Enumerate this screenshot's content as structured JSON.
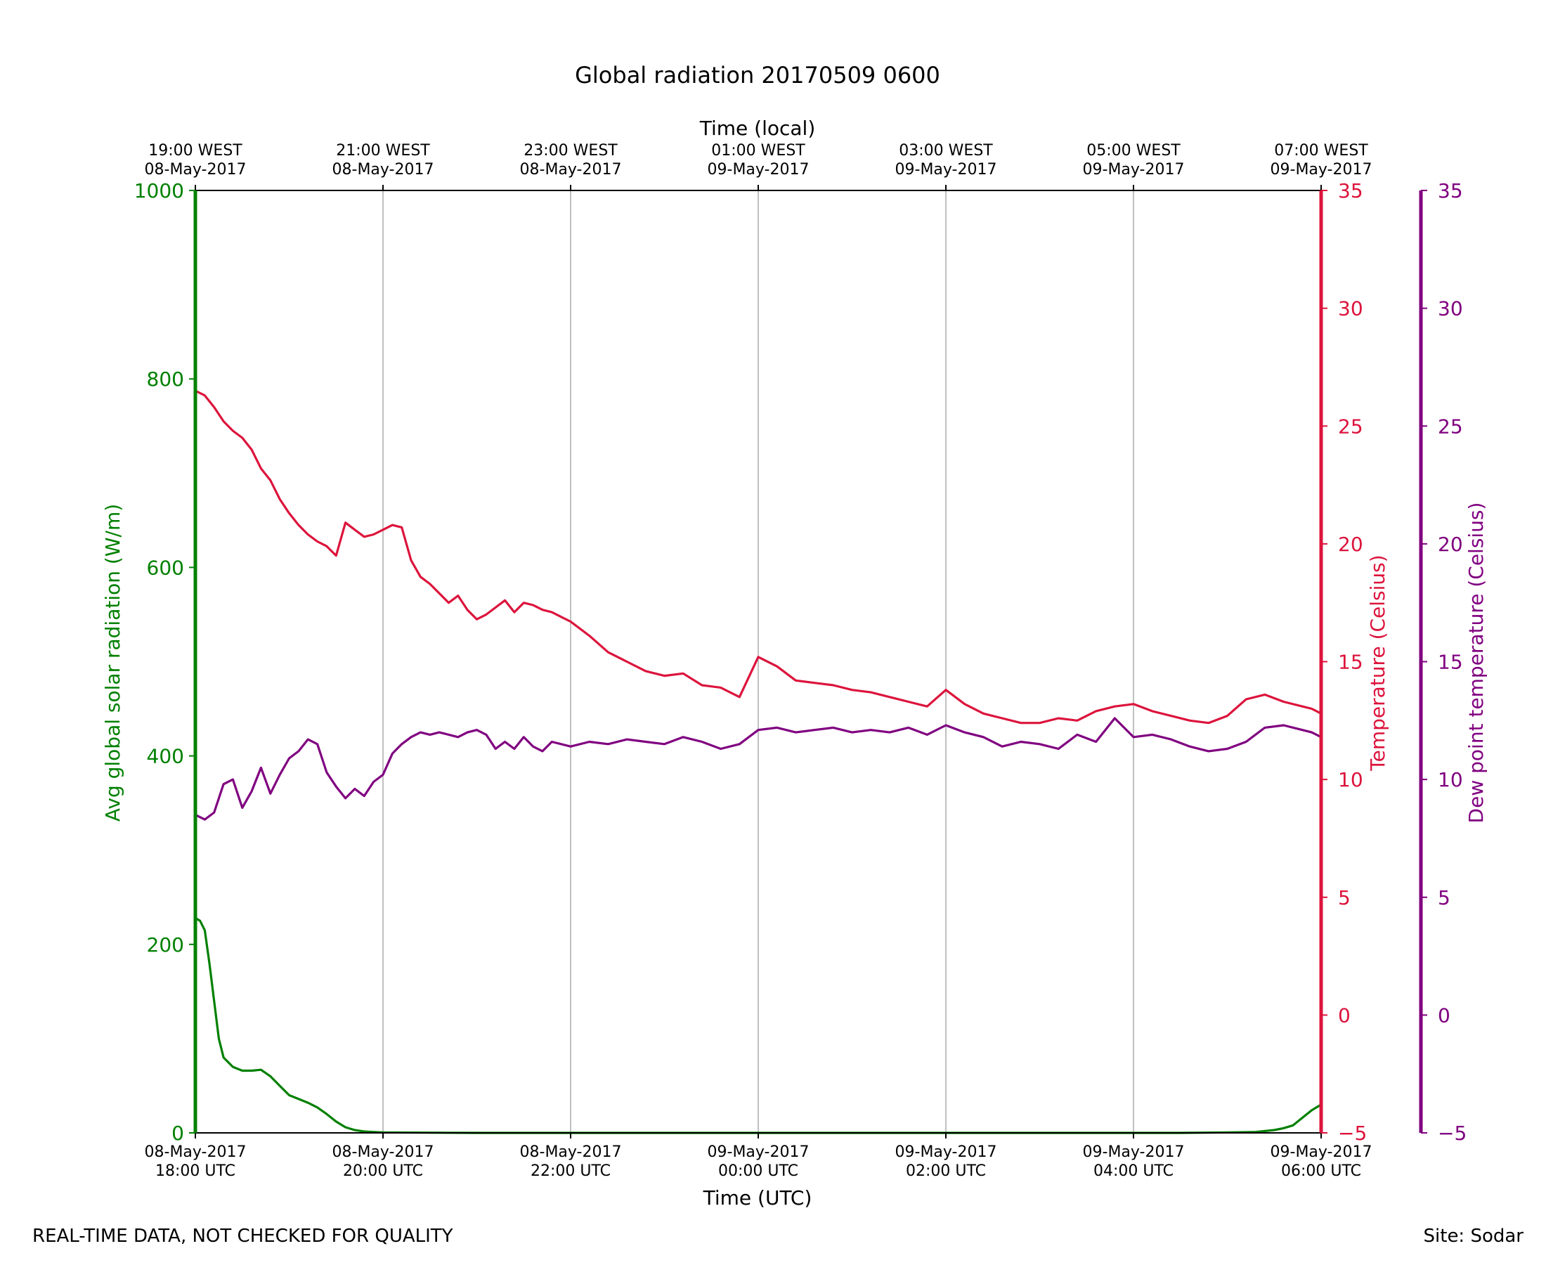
{
  "chart_data": {
    "type": "line",
    "title": "Global radiation 20170509 0600",
    "x_axis_bottom": {
      "label": "Time (UTC)",
      "range_hours": [
        0,
        12
      ],
      "ticks": [
        {
          "h": 0,
          "l1": "08-May-2017",
          "l2": "18:00 UTC"
        },
        {
          "h": 2,
          "l1": "08-May-2017",
          "l2": "20:00 UTC"
        },
        {
          "h": 4,
          "l1": "08-May-2017",
          "l2": "22:00 UTC"
        },
        {
          "h": 6,
          "l1": "09-May-2017",
          "l2": "00:00 UTC"
        },
        {
          "h": 8,
          "l1": "09-May-2017",
          "l2": "02:00 UTC"
        },
        {
          "h": 10,
          "l1": "09-May-2017",
          "l2": "04:00 UTC"
        },
        {
          "h": 12,
          "l1": "09-May-2017",
          "l2": "06:00 UTC"
        }
      ]
    },
    "x_axis_top": {
      "label": "Time (local)",
      "ticks": [
        {
          "h": 0,
          "l1": "19:00 WEST",
          "l2": "08-May-2017"
        },
        {
          "h": 2,
          "l1": "21:00 WEST",
          "l2": "08-May-2017"
        },
        {
          "h": 4,
          "l1": "23:00 WEST",
          "l2": "08-May-2017"
        },
        {
          "h": 6,
          "l1": "01:00 WEST",
          "l2": "09-May-2017"
        },
        {
          "h": 8,
          "l1": "03:00 WEST",
          "l2": "09-May-2017"
        },
        {
          "h": 10,
          "l1": "05:00 WEST",
          "l2": "09-May-2017"
        },
        {
          "h": 12,
          "l1": "07:00 WEST",
          "l2": "09-May-2017"
        }
      ]
    },
    "y_axis_left": {
      "label": "Avg global solar radiation (W/m)",
      "ylim": [
        0,
        1000
      ],
      "ticks": [
        "0",
        "200",
        "400",
        "600",
        "800",
        "1000"
      ],
      "tick_values": [
        0,
        200,
        400,
        600,
        800,
        1000
      ],
      "color": "#008000"
    },
    "y_axis_right": {
      "label": "Temperature (Celsius)",
      "ylim": [
        -5,
        35
      ],
      "ticks": [
        "−5",
        "0",
        "5",
        "10",
        "15",
        "20",
        "25",
        "30",
        "35"
      ],
      "tick_values": [
        -5,
        0,
        5,
        10,
        15,
        20,
        25,
        30,
        35
      ],
      "color": "#dc143c"
    },
    "y_axis_right2": {
      "label": "Dew point temperature (Celsius)",
      "ylim": [
        -5,
        35
      ],
      "ticks": [
        "−5",
        "0",
        "5",
        "10",
        "15",
        "20",
        "25",
        "30",
        "35"
      ],
      "tick_values": [
        -5,
        0,
        5,
        10,
        15,
        20,
        25,
        30,
        35
      ],
      "color": "#800080"
    },
    "grid": "vertical",
    "series": [
      {
        "name": "Avg global solar radiation",
        "axis": "left",
        "color": "#008000",
        "x_hours": [
          0,
          0.05,
          0.1,
          0.15,
          0.2,
          0.25,
          0.3,
          0.4,
          0.5,
          0.6,
          0.7,
          0.8,
          0.9,
          1.0,
          1.1,
          1.2,
          1.3,
          1.4,
          1.5,
          1.6,
          1.7,
          1.8,
          1.9,
          2.0,
          2.5,
          3.0,
          4.0,
          5.0,
          6.0,
          7.0,
          8.0,
          9.0,
          10.0,
          10.5,
          11.0,
          11.3,
          11.5,
          11.6,
          11.7,
          11.8,
          11.9,
          12.0
        ],
        "values": [
          228,
          225,
          215,
          180,
          140,
          100,
          80,
          70,
          66,
          66,
          67,
          60,
          50,
          40,
          36,
          32,
          27,
          20,
          12,
          6,
          3,
          1.5,
          1,
          0.5,
          0.2,
          0,
          0,
          0,
          0,
          0,
          0,
          0,
          0,
          0,
          0.5,
          1,
          3,
          5,
          8,
          16,
          24,
          30
        ]
      },
      {
        "name": "Temperature",
        "axis": "right",
        "color": "#dc143c",
        "x_hours": [
          0,
          0.1,
          0.2,
          0.3,
          0.4,
          0.5,
          0.6,
          0.7,
          0.8,
          0.9,
          1.0,
          1.1,
          1.2,
          1.3,
          1.4,
          1.5,
          1.6,
          1.7,
          1.8,
          1.9,
          2.0,
          2.1,
          2.2,
          2.3,
          2.4,
          2.5,
          2.6,
          2.7,
          2.8,
          2.9,
          3.0,
          3.1,
          3.2,
          3.3,
          3.4,
          3.5,
          3.6,
          3.7,
          3.8,
          3.9,
          4.0,
          4.2,
          4.4,
          4.6,
          4.8,
          5.0,
          5.2,
          5.4,
          5.6,
          5.8,
          6.0,
          6.2,
          6.4,
          6.6,
          6.8,
          7.0,
          7.2,
          7.4,
          7.6,
          7.8,
          8.0,
          8.2,
          8.4,
          8.6,
          8.8,
          9.0,
          9.2,
          9.4,
          9.6,
          9.8,
          10.0,
          10.2,
          10.4,
          10.6,
          10.8,
          11.0,
          11.2,
          11.4,
          11.6,
          11.8,
          11.9,
          12.0
        ],
        "values": [
          26.5,
          26.3,
          25.8,
          25.2,
          24.8,
          24.5,
          24.0,
          23.2,
          22.7,
          21.9,
          21.3,
          20.8,
          20.4,
          20.1,
          19.9,
          19.5,
          20.9,
          20.6,
          20.3,
          20.4,
          20.6,
          20.8,
          20.7,
          19.3,
          18.6,
          18.3,
          17.9,
          17.5,
          17.8,
          17.2,
          16.8,
          17.0,
          17.3,
          17.6,
          17.1,
          17.5,
          17.4,
          17.2,
          17.1,
          16.9,
          16.7,
          16.1,
          15.4,
          15.0,
          14.6,
          14.4,
          14.5,
          14.0,
          13.9,
          13.5,
          15.2,
          14.8,
          14.2,
          14.1,
          14.0,
          13.8,
          13.7,
          13.5,
          13.3,
          13.1,
          13.8,
          13.2,
          12.8,
          12.6,
          12.4,
          12.4,
          12.6,
          12.5,
          12.9,
          13.1,
          13.2,
          12.9,
          12.7,
          12.5,
          12.4,
          12.7,
          13.4,
          13.6,
          13.3,
          13.1,
          13.0,
          12.8
        ]
      },
      {
        "name": "Dew point temperature",
        "axis": "right2",
        "color": "#800080",
        "x_hours": [
          0,
          0.1,
          0.2,
          0.3,
          0.4,
          0.5,
          0.6,
          0.7,
          0.8,
          0.9,
          1.0,
          1.1,
          1.2,
          1.3,
          1.4,
          1.5,
          1.6,
          1.7,
          1.8,
          1.9,
          2.0,
          2.1,
          2.2,
          2.3,
          2.4,
          2.5,
          2.6,
          2.7,
          2.8,
          2.9,
          3.0,
          3.1,
          3.2,
          3.3,
          3.4,
          3.5,
          3.6,
          3.7,
          3.8,
          4.0,
          4.2,
          4.4,
          4.6,
          4.8,
          5.0,
          5.2,
          5.4,
          5.6,
          5.8,
          6.0,
          6.2,
          6.4,
          6.6,
          6.8,
          7.0,
          7.2,
          7.4,
          7.6,
          7.8,
          8.0,
          8.2,
          8.4,
          8.6,
          8.8,
          9.0,
          9.2,
          9.4,
          9.6,
          9.8,
          10.0,
          10.2,
          10.4,
          10.6,
          10.8,
          11.0,
          11.2,
          11.4,
          11.6,
          11.8,
          11.9,
          12.0
        ],
        "values": [
          8.5,
          8.3,
          8.6,
          9.8,
          10.0,
          8.8,
          9.5,
          10.5,
          9.4,
          10.2,
          10.9,
          11.2,
          11.7,
          11.5,
          10.3,
          9.7,
          9.2,
          9.6,
          9.3,
          9.9,
          10.2,
          11.1,
          11.5,
          11.8,
          12.0,
          11.9,
          12.0,
          11.9,
          11.8,
          12.0,
          12.1,
          11.9,
          11.3,
          11.6,
          11.3,
          11.8,
          11.4,
          11.2,
          11.6,
          11.4,
          11.6,
          11.5,
          11.7,
          11.6,
          11.5,
          11.8,
          11.6,
          11.3,
          11.5,
          12.1,
          12.2,
          12.0,
          12.1,
          12.2,
          12.0,
          12.1,
          12.0,
          12.2,
          11.9,
          12.3,
          12.0,
          11.8,
          11.4,
          11.6,
          11.5,
          11.3,
          11.9,
          11.6,
          12.6,
          11.8,
          11.9,
          11.7,
          11.4,
          11.2,
          11.3,
          11.6,
          12.2,
          12.3,
          12.1,
          12.0,
          11.8
        ]
      }
    ]
  },
  "footer": {
    "disclaimer": "REAL-TIME DATA, NOT CHECKED FOR QUALITY",
    "site": "Site: Sodar"
  }
}
